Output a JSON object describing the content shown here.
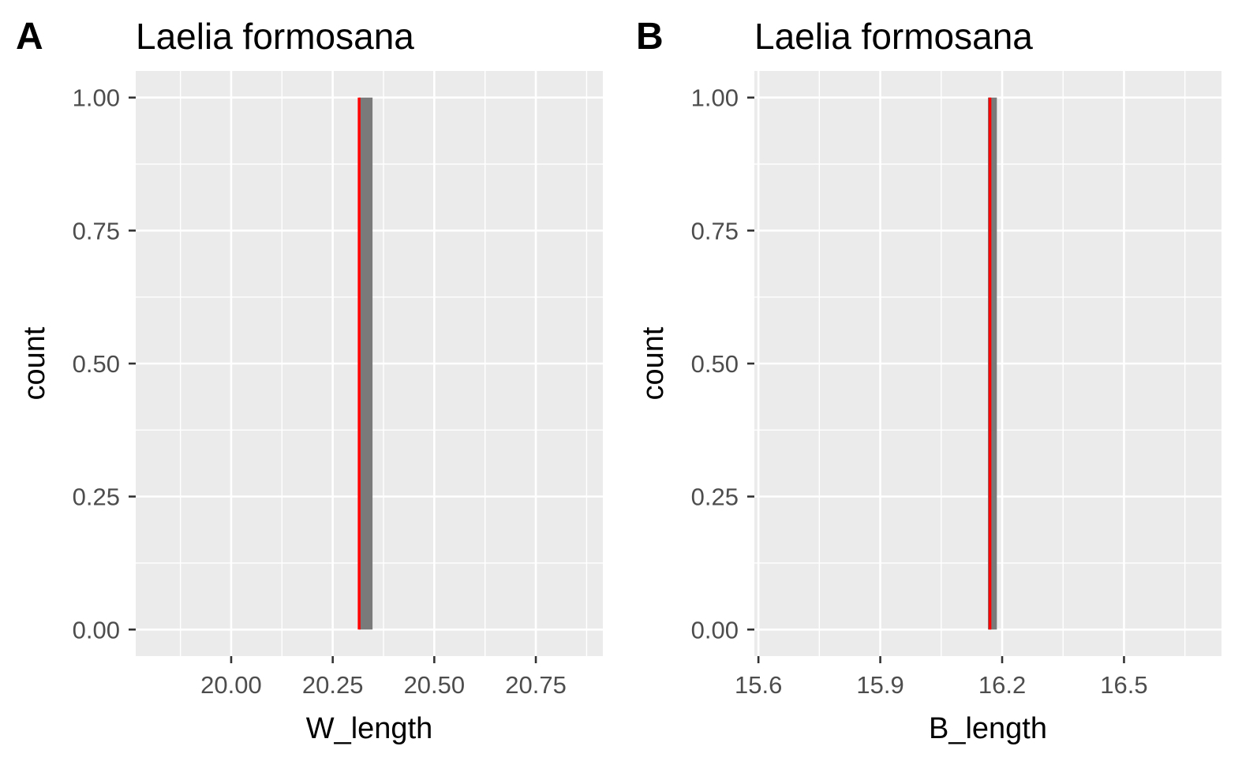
{
  "chart_data": [
    {
      "type": "bar",
      "panel_tag": "A",
      "title": "Laelia formosana",
      "xlabel": "W_length",
      "ylabel": "count",
      "xlim": [
        19.765,
        20.915
      ],
      "ylim": [
        -0.05,
        1.05
      ],
      "x_ticks": [
        20.0,
        20.25,
        20.5,
        20.75
      ],
      "x_tick_labels": [
        "20.00",
        "20.25",
        "20.50",
        "20.75"
      ],
      "y_ticks": [
        0,
        0.25,
        0.5,
        0.75,
        1.0
      ],
      "y_tick_labels": [
        "0.00",
        "0.25",
        "0.50",
        "0.75",
        "1.00"
      ],
      "bars": [
        {
          "x0": 20.315,
          "x1": 20.348,
          "count": 1
        }
      ],
      "reference_line": {
        "x": 20.315,
        "color": "#ff0000"
      },
      "grid": true,
      "legend": "none"
    },
    {
      "type": "bar",
      "panel_tag": "B",
      "title": "Laelia formosana",
      "xlabel": "B_length",
      "ylabel": "count",
      "xlim": [
        15.59,
        16.74
      ],
      "ylim": [
        -0.05,
        1.05
      ],
      "x_ticks": [
        15.6,
        15.9,
        16.2,
        16.5
      ],
      "x_tick_labels": [
        "15.6",
        "15.9",
        "16.2",
        "16.5"
      ],
      "y_ticks": [
        0,
        0.25,
        0.5,
        0.75,
        1.0
      ],
      "y_tick_labels": [
        "0.00",
        "0.25",
        "0.50",
        "0.75",
        "1.00"
      ],
      "bars": [
        {
          "x0": 16.165,
          "x1": 16.187,
          "count": 1
        }
      ],
      "reference_line": {
        "x": 16.17,
        "color": "#ff0000"
      },
      "grid": true,
      "legend": "none"
    }
  ],
  "colors": {
    "panel_background": "#ebebeb",
    "grid_line": "#ffffff",
    "bar_fill": "#7a7a7a",
    "tick_label": "#4d4d4d",
    "axis_tick": "#333333"
  }
}
